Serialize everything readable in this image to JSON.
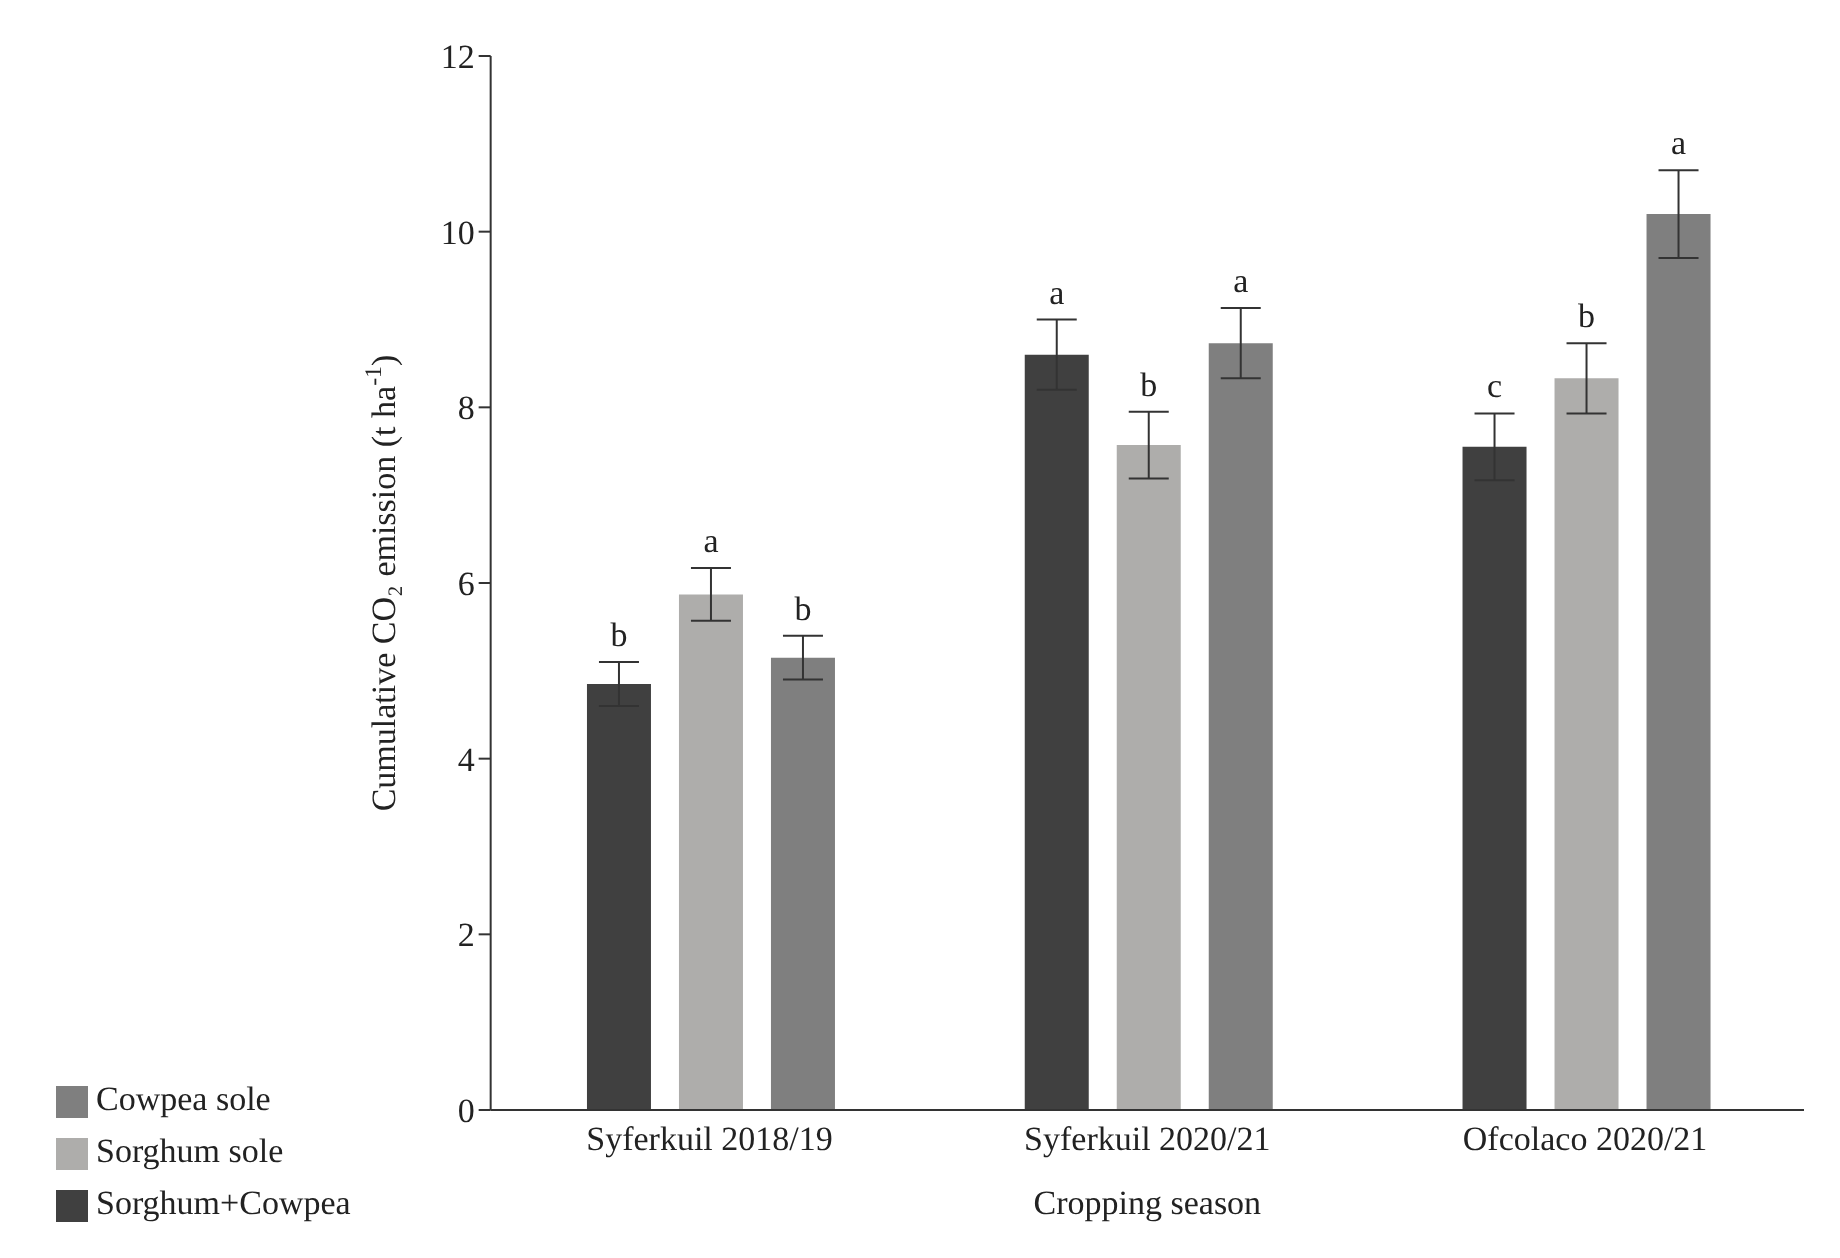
{
  "chart_data": {
    "type": "bar",
    "xlabel": "Cropping season",
    "ylabel": "Cumulative CO₂ emission (t ha$^{-1}$)",
    "categories": [
      "Syferkuil 2018/19",
      "Syferkuil 2020/21",
      "Ofcolaco 2020/21"
    ],
    "series": [
      {
        "name": "Sorghum+Cowpea",
        "color": "#404040",
        "values": [
          4.85,
          8.6,
          7.55
        ],
        "errors": [
          0.25,
          0.4,
          0.38
        ],
        "value_labels": [
          "b",
          "a",
          "c"
        ]
      },
      {
        "name": "Sorghum sole",
        "color": "#aeadab",
        "values": [
          5.87,
          7.57,
          8.33
        ],
        "errors": [
          0.3,
          0.38,
          0.4
        ],
        "value_labels": [
          "a",
          "b",
          "b"
        ]
      },
      {
        "name": "Cowpea sole",
        "color": "#7f7f7f",
        "values": [
          5.15,
          8.73,
          10.2
        ],
        "errors": [
          0.25,
          0.4,
          0.5
        ],
        "value_labels": [
          "b",
          "a",
          "a"
        ]
      }
    ],
    "ylim": [
      0,
      12
    ],
    "yticks": [
      0,
      2,
      4,
      6,
      8,
      10,
      12
    ],
    "grid": false,
    "legend": "bottom left"
  }
}
